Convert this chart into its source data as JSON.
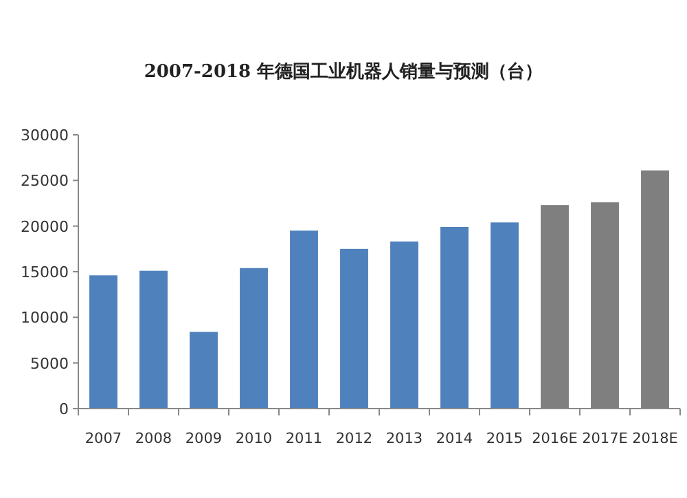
{
  "chart_data": {
    "type": "bar",
    "title": "2007-2018 年德国工业机器人销量与预测（台）",
    "categories": [
      "2007",
      "2008",
      "2009",
      "2010",
      "2011",
      "2012",
      "2013",
      "2014",
      "2015",
      "2016E",
      "2017E",
      "2018E"
    ],
    "values": [
      14600,
      15100,
      8400,
      15400,
      19500,
      17500,
      18300,
      19900,
      20400,
      22300,
      22600,
      26100
    ],
    "colors": [
      "#4f81bd",
      "#4f81bd",
      "#4f81bd",
      "#4f81bd",
      "#4f81bd",
      "#4f81bd",
      "#4f81bd",
      "#4f81bd",
      "#4f81bd",
      "#7f7f7f",
      "#7f7f7f",
      "#7f7f7f"
    ],
    "ylim": [
      0,
      30000
    ],
    "yticks": [
      0,
      5000,
      10000,
      15000,
      20000,
      25000,
      30000
    ]
  }
}
